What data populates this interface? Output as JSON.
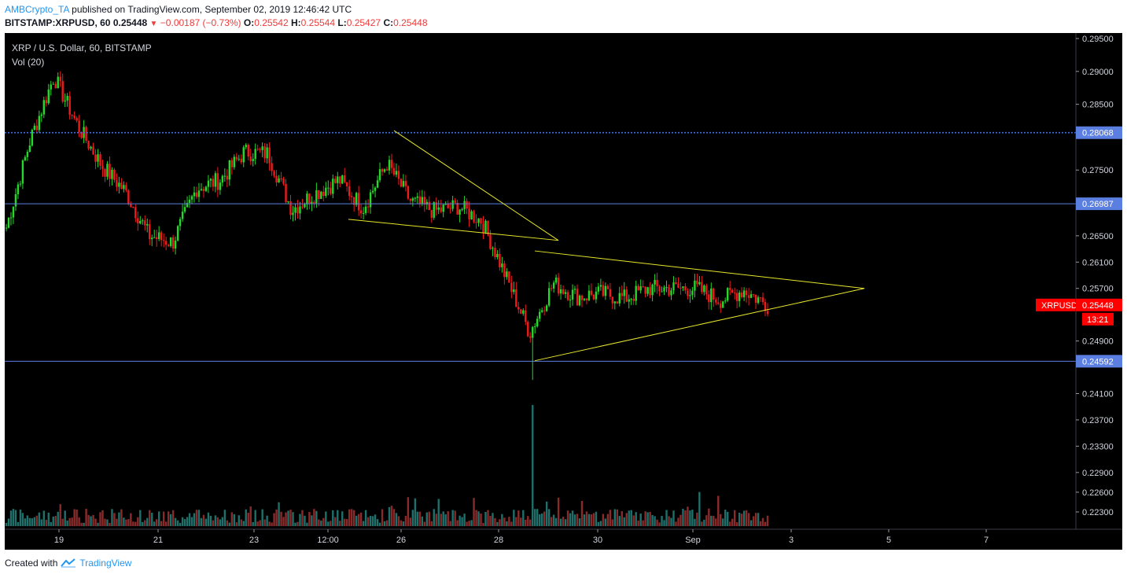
{
  "header": {
    "author": "AMBCrypto_TA",
    "published_text": "published on TradingView.com, September 02, 2019 12:46:42 UTC",
    "symbol_line": "BITSTAMP:XRPUSD, 60",
    "last": "0.25448",
    "change": "−0.00187 (−0.73%)",
    "open_label": "O:",
    "open": "0.25542",
    "high_label": "H:",
    "high": "0.25544",
    "low_label": "L:",
    "low": "0.25427",
    "close_label": "C:",
    "close": "0.25448"
  },
  "legend": {
    "instrument": "XRP / U.S. Dollar, 60, BITSTAMP",
    "volume": "Vol (20)"
  },
  "footer": {
    "created_with": "Created with",
    "brand": "TradingView"
  },
  "colors": {
    "background": "#000000",
    "up": "#26d82a",
    "down": "#ee1b1b",
    "vol_up": "#1f6f6a",
    "vol_down": "#8a2b2b",
    "level_line": "#5b7fe0",
    "dotted_level": "#3d6ee8",
    "trendline": "#e6e62a",
    "price_tag": "#ff0000"
  },
  "chart_data": {
    "type": "candlestick",
    "symbol": "XRPUSD",
    "timeframe": "60",
    "x_ticks": [
      "19",
      "21",
      "23",
      "12:00",
      "26",
      "28",
      "30",
      "Sep",
      "3",
      "5",
      "7"
    ],
    "y_ticks": [
      "0.29500",
      "0.29000",
      "0.28500",
      "0.27500",
      "0.26500",
      "0.26100",
      "0.25700",
      "0.24900",
      "0.24100",
      "0.23700",
      "0.23300",
      "0.22900",
      "0.22600",
      "0.22300"
    ],
    "price_levels": [
      {
        "value": "0.28068",
        "style": "dotted"
      },
      {
        "value": "0.26987",
        "style": "solid"
      },
      {
        "value": "0.24592",
        "style": "solid"
      }
    ],
    "current_price": {
      "label": "XRPUSD",
      "value": "0.25448",
      "countdown": "13:21"
    },
    "close_path_anchors": [
      [
        0.264,
        0.2685
      ],
      [
        0.272,
        0.287
      ],
      [
        0.29,
        0.2885
      ],
      [
        0.283,
        0.2805
      ],
      [
        0.2775,
        0.274
      ],
      [
        0.2745,
        0.269
      ],
      [
        0.268,
        0.262
      ],
      [
        0.265,
        0.263
      ],
      [
        0.27,
        0.2745
      ],
      [
        0.273,
        0.274
      ],
      [
        0.2755,
        0.28
      ],
      [
        0.279,
        0.276
      ],
      [
        0.269,
        0.269
      ],
      [
        0.2705,
        0.2725
      ],
      [
        0.2715,
        0.2755
      ],
      [
        0.2705,
        0.268
      ],
      [
        0.279,
        0.273
      ],
      [
        0.27,
        0.2705
      ],
      [
        0.269,
        0.2685
      ],
      [
        0.27,
        0.269
      ],
      [
        0.2675,
        0.267
      ],
      [
        0.2655,
        0.252
      ],
      [
        0.251,
        0.2495
      ],
      [
        0.2545,
        0.261
      ],
      [
        0.2555,
        0.256
      ],
      [
        0.2565,
        0.256
      ],
      [
        0.254,
        0.257
      ],
      [
        0.2575,
        0.2565
      ],
      [
        0.255,
        0.259
      ],
      [
        0.258,
        0.256
      ],
      [
        0.2545,
        0.256
      ],
      [
        0.2575,
        0.256
      ],
      [
        0.2545,
        0.2545
      ]
    ],
    "volume_spike": {
      "index_fraction": 0.69,
      "value": 1.0
    }
  }
}
